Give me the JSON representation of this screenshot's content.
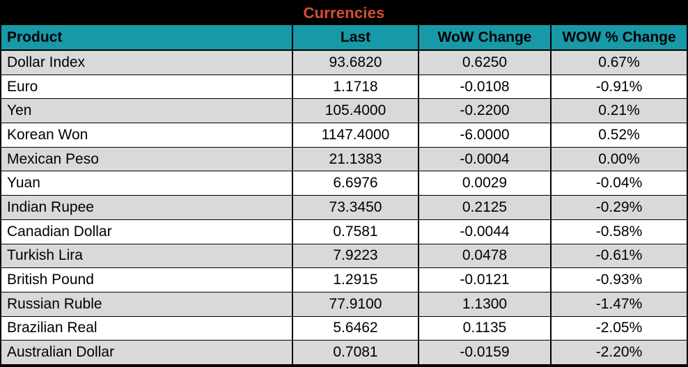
{
  "chart_data": {
    "type": "table",
    "title": "Currencies",
    "columns": [
      "Product",
      "Last",
      "WoW Change",
      "WOW % Change"
    ],
    "rows": [
      [
        "Dollar Index",
        "93.6820",
        "0.6250",
        "0.67%"
      ],
      [
        "Euro",
        "1.1718",
        "-0.0108",
        "-0.91%"
      ],
      [
        "Yen",
        "105.4000",
        "-0.2200",
        "0.21%"
      ],
      [
        "Korean Won",
        "1147.4000",
        "-6.0000",
        "0.52%"
      ],
      [
        "Mexican Peso",
        "21.1383",
        "-0.0004",
        "0.00%"
      ],
      [
        "Yuan",
        "6.6976",
        "0.0029",
        "-0.04%"
      ],
      [
        "Indian Rupee",
        "73.3450",
        "0.2125",
        "-0.29%"
      ],
      [
        "Canadian Dollar",
        "0.7581",
        "-0.0044",
        "-0.58%"
      ],
      [
        "Turkish Lira",
        "7.9223",
        "0.0478",
        "-0.61%"
      ],
      [
        "British Pound",
        "1.2915",
        "-0.0121",
        "-0.93%"
      ],
      [
        "Russian Ruble",
        "77.9100",
        "1.1300",
        "-1.47%"
      ],
      [
        "Brazilian Real",
        "5.6462",
        "0.1135",
        "-2.05%"
      ],
      [
        "Australian Dollar",
        "0.7081",
        "-0.0159",
        "-2.20%"
      ]
    ]
  },
  "colors": {
    "title_text": "#d6502d",
    "header_bg": "#1899a8",
    "row_gray": "#d9d9d9",
    "row_white": "#ffffff",
    "border": "#000000"
  }
}
